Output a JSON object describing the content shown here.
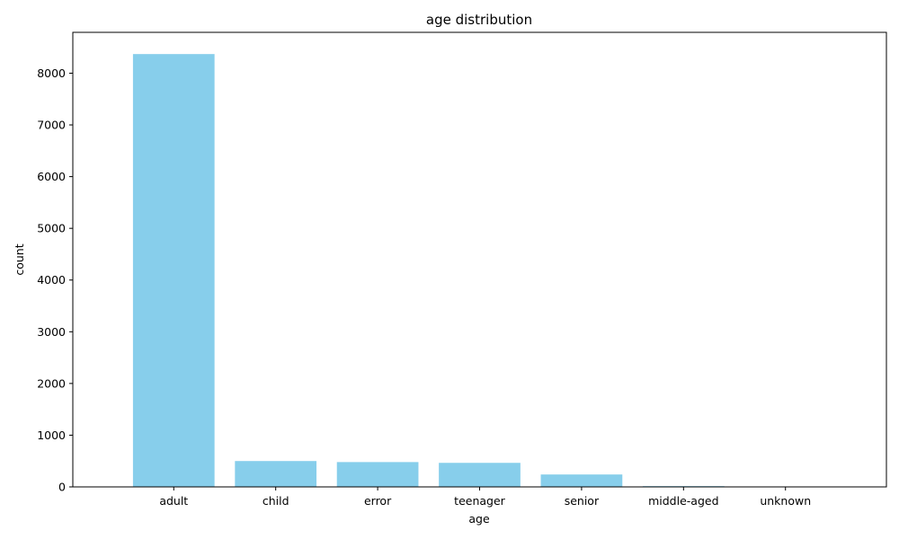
{
  "chart_data": {
    "type": "bar",
    "title": "age distribution",
    "xlabel": "age",
    "ylabel": "count",
    "categories": [
      "adult",
      "child",
      "error",
      "teenager",
      "senior",
      "middle-aged",
      "unknown"
    ],
    "values": [
      8370,
      500,
      480,
      465,
      240,
      15,
      3
    ],
    "ylim": [
      0,
      8790
    ],
    "yticks": [
      0,
      1000,
      2000,
      3000,
      4000,
      5000,
      6000,
      7000,
      8000
    ],
    "ytick_labels": [
      "0",
      "1000",
      "2000",
      "3000",
      "4000",
      "5000",
      "6000",
      "7000",
      "8000"
    ],
    "bar_color": "#87ceeb",
    "grid": false,
    "legend": "none"
  }
}
